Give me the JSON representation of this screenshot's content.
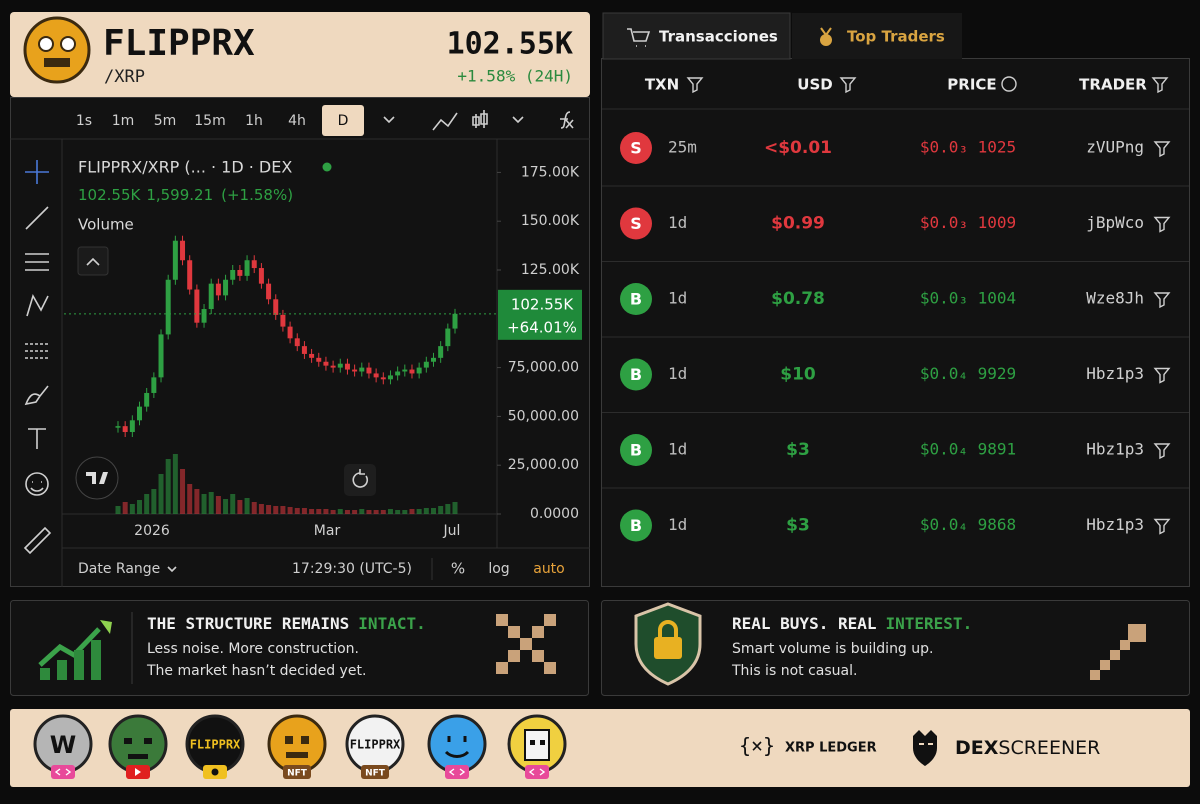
{
  "header": {
    "name": "FLIPPRX",
    "pair": "/XRP",
    "price": "102.55K",
    "change": "+1.58% (24H)"
  },
  "toolbar": {
    "intervals": [
      "1s",
      "1m",
      "5m",
      "15m",
      "1h",
      "4h",
      "D"
    ],
    "active": 6
  },
  "chart": {
    "legend": "FLIPPRX/XRP (... · 1D · DEX",
    "last": "102.55K",
    "diff": "1,599.21",
    "pct": "(+1.58%)",
    "volume_label": "Volume",
    "ylim": [
      0,
      187500
    ],
    "yticks": [
      {
        "value": 0,
        "label": "0.0000"
      },
      {
        "value": 25000,
        "label": "25,000.00"
      },
      {
        "value": 50000,
        "label": "50,000.00"
      },
      {
        "value": 75000,
        "label": "75,000.00"
      },
      {
        "value": 125000,
        "label": "125.00K"
      },
      {
        "value": 150000,
        "label": "150.00K"
      },
      {
        "value": 175000,
        "label": "175.00K"
      }
    ],
    "xlabels": [
      "2026",
      "Mar",
      "Jul"
    ],
    "price_tag": {
      "value": 102550,
      "label": "102.55K",
      "change": "+64.01%"
    },
    "closes": [
      45000,
      42000,
      48000,
      55000,
      62000,
      70000,
      92000,
      120000,
      140000,
      130000,
      115000,
      98000,
      105000,
      118000,
      112000,
      120000,
      125000,
      122000,
      130000,
      126000,
      118000,
      110000,
      102000,
      96000,
      90000,
      86000,
      82000,
      80000,
      78000,
      76000,
      75000,
      77000,
      74000,
      73000,
      75000,
      72000,
      70000,
      69000,
      71000,
      73000,
      74000,
      72000,
      75000,
      78000,
      80000,
      86000,
      95000,
      102550
    ],
    "volume": [
      8,
      12,
      10,
      14,
      20,
      25,
      40,
      55,
      60,
      45,
      30,
      25,
      20,
      22,
      18,
      15,
      20,
      14,
      16,
      12,
      10,
      9,
      8,
      8,
      7,
      6,
      6,
      5,
      5,
      5,
      4,
      5,
      4,
      4,
      5,
      4,
      4,
      4,
      5,
      4,
      4,
      5,
      5,
      6,
      6,
      8,
      10,
      12
    ],
    "up_color": "#2ea043",
    "down_color": "#e0383e"
  },
  "chart_footer": {
    "date_range": "Date Range",
    "time": "17:29:30 (UTC-5)",
    "percent": "%",
    "log": "log",
    "auto": "auto"
  },
  "tabs": [
    "Transacciones",
    "Top Traders"
  ],
  "transactions": {
    "headers": [
      "TXN",
      "USD",
      "PRICE",
      "TRADER"
    ],
    "rows": [
      {
        "type": "S",
        "age": "25m",
        "usd": "<$0.01",
        "price": "$0.0₃ 1025",
        "trader": "zVUPng",
        "color": "#e0383e"
      },
      {
        "type": "S",
        "age": "1d",
        "usd": "$0.99",
        "price": "$0.0₃ 1009",
        "trader": "jBpWco",
        "color": "#e0383e"
      },
      {
        "type": "B",
        "age": "1d",
        "usd": "$0.78",
        "price": "$0.0₃ 1004",
        "trader": "Wze8Jh",
        "color": "#2ea043"
      },
      {
        "type": "B",
        "age": "1d",
        "usd": "$10",
        "price": "$0.0₄ 9929",
        "trader": "Hbz1p3",
        "color": "#2ea043"
      },
      {
        "type": "B",
        "age": "1d",
        "usd": "$3",
        "price": "$0.0₄ 9891",
        "trader": "Hbz1p3",
        "color": "#2ea043"
      },
      {
        "type": "B",
        "age": "1d",
        "usd": "$3",
        "price": "$0.0₄ 9868",
        "trader": "Hbz1p3",
        "color": "#2ea043"
      }
    ]
  },
  "cards": [
    {
      "title": "THE STRUCTURE REMAINS",
      "accent": "INTACT.",
      "lines": [
        "Less noise. More construction.",
        "The market hasn’t decided yet."
      ]
    },
    {
      "title": "REAL BUYS. REAL",
      "accent": "INTEREST.",
      "lines": [
        "Smart volume is building up.",
        "This is not casual."
      ]
    }
  ],
  "footer": {
    "avatar_w": "W",
    "avatar_brand1": "FLIPPRX",
    "avatar_brand2": "FLIPPRX",
    "nft": "NFT",
    "xrp_logo": "{×}",
    "xrp": "XRP LEDGER",
    "dex1": "DEX",
    "dex2": "SCREENER"
  }
}
